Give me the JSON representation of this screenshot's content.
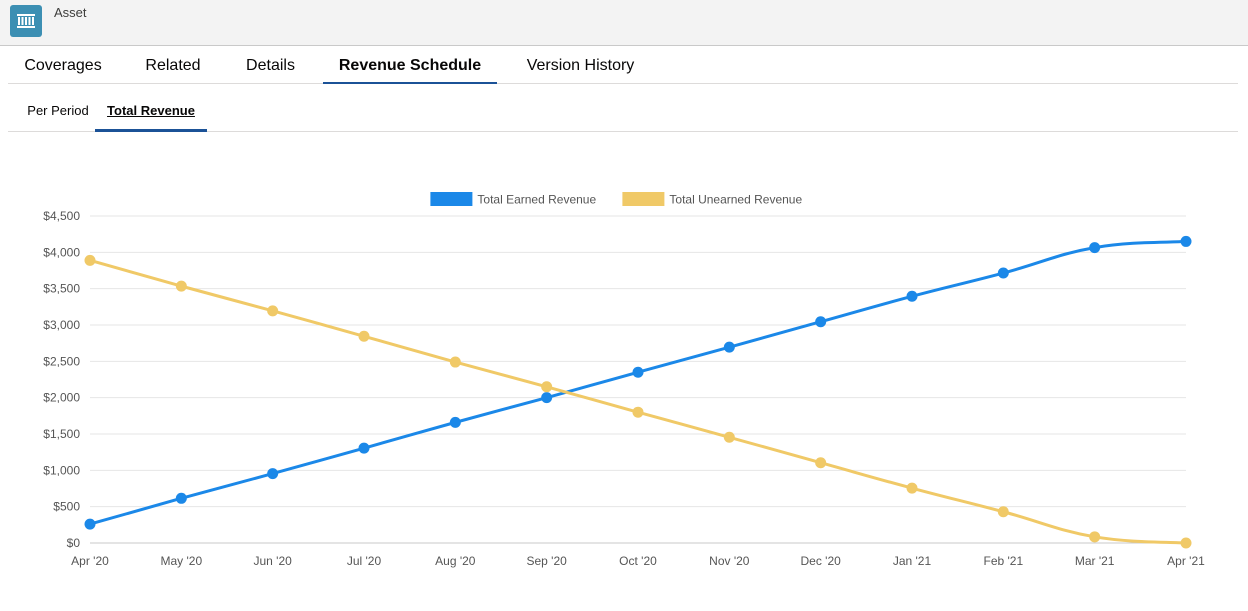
{
  "header": {
    "title": "Asset",
    "icon": "asset-icon"
  },
  "tabs": [
    {
      "label": "Coverages",
      "active": false
    },
    {
      "label": "Related",
      "active": false
    },
    {
      "label": "Details",
      "active": false
    },
    {
      "label": "Revenue Schedule",
      "active": true
    },
    {
      "label": "Version History",
      "active": false
    }
  ],
  "subtabs": [
    {
      "label": "Per Period",
      "active": false
    },
    {
      "label": "Total Revenue",
      "active": true
    }
  ],
  "chart_data": {
    "type": "line",
    "x": [
      "Apr '20",
      "May '20",
      "Jun '20",
      "Jul '20",
      "Aug '20",
      "Sep '20",
      "Oct '20",
      "Nov '20",
      "Dec '20",
      "Jan '21",
      "Feb '21",
      "Mar '21",
      "Apr '21"
    ],
    "series": [
      {
        "name": "Total Earned Revenue",
        "color": "#1b88e8",
        "values": [
          260,
          615,
          955,
          1305,
          1660,
          2000,
          2350,
          2695,
          3045,
          3395,
          3715,
          4065,
          4150
        ]
      },
      {
        "name": "Total Unearned Revenue",
        "color": "#f0c967",
        "values": [
          3890,
          3535,
          3195,
          2845,
          2490,
          2150,
          1800,
          1455,
          1105,
          755,
          430,
          85,
          0
        ]
      }
    ],
    "yticks": [
      "$0",
      "$500",
      "$1,000",
      "$1,500",
      "$2,000",
      "$2,500",
      "$3,000",
      "$3,500",
      "$4,000",
      "$4,500"
    ],
    "ylim": [
      0,
      4500
    ],
    "legend": "top-center",
    "grid": true
  }
}
